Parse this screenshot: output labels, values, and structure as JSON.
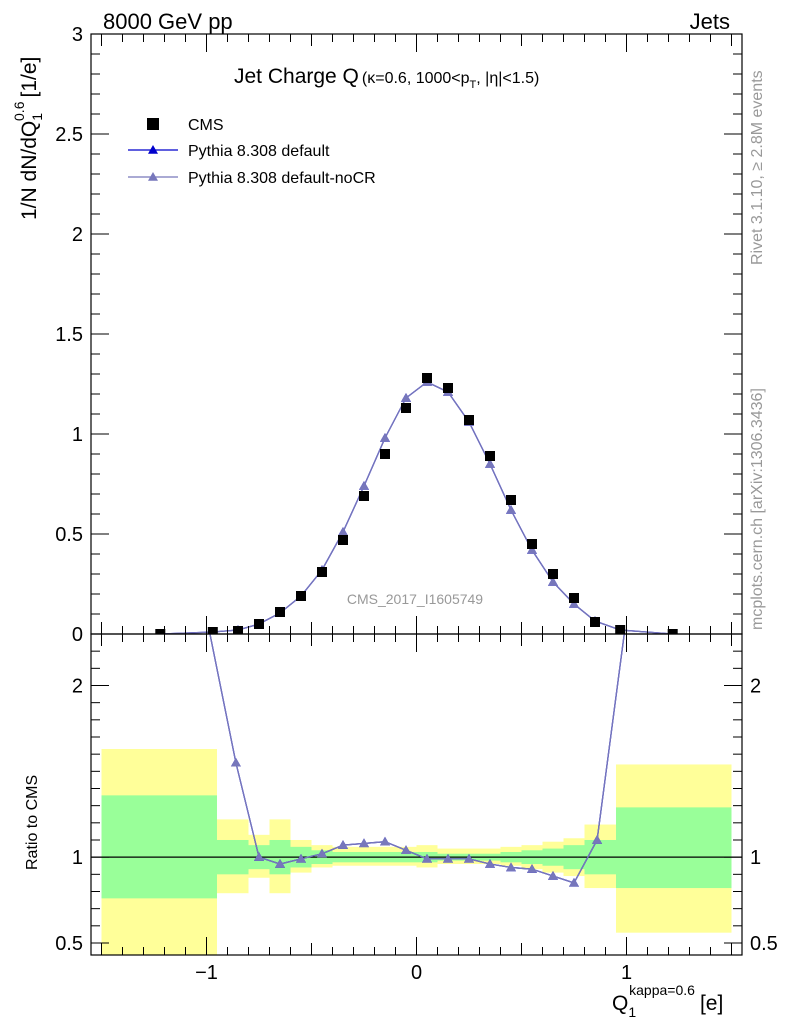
{
  "header": {
    "left": "8000 GeV pp",
    "right": "Jets"
  },
  "side": {
    "rivet": "Rivet 3.1.10, ≥ 2.8M events",
    "site": "mcplots.cern.ch [arXiv:1306.3436]"
  },
  "chart_data": [
    {
      "type": "scatter",
      "panel": "main",
      "title_main": "Jet Charge Q",
      "title_sub": "(κ=0.6, 1000<p",
      "title_sub_index": "T",
      "title_sub_end": ", |η|<1.5)",
      "ylabel": "1/N dN/dQ",
      "ylabel_sub": "1",
      "ylabel_sup": "0.6",
      "ylabel_unit": "[1/e]",
      "watermark": "CMS_2017_I1605749",
      "xlim": [
        -1.55,
        1.55
      ],
      "ylim": [
        0,
        3
      ],
      "y_ticks": [
        "0",
        "0.5",
        "1",
        "1.5",
        "2",
        "2.5",
        "3"
      ],
      "legend_placement": "top-left",
      "data": {
        "name": "CMS",
        "color": "#000000",
        "x": [
          -1.22,
          -0.97,
          -0.85,
          -0.75,
          -0.65,
          -0.55,
          -0.45,
          -0.35,
          -0.25,
          -0.15,
          -0.05,
          0.05,
          0.15,
          0.25,
          0.35,
          0.45,
          0.55,
          0.65,
          0.75,
          0.85,
          0.97,
          1.22
        ],
        "y": [
          0.0,
          0.01,
          0.015,
          0.05,
          0.11,
          0.19,
          0.31,
          0.47,
          0.69,
          0.9,
          1.13,
          1.28,
          1.23,
          1.07,
          0.89,
          0.67,
          0.45,
          0.3,
          0.18,
          0.06,
          0.02,
          0.0
        ]
      },
      "series": [
        {
          "name": "Pythia 8.308 default",
          "color": "#0000cc",
          "x": [
            -1.22,
            -0.97,
            -0.85,
            -0.75,
            -0.65,
            -0.55,
            -0.45,
            -0.35,
            -0.25,
            -0.15,
            -0.05,
            0.05,
            0.15,
            0.25,
            0.35,
            0.45,
            0.55,
            0.65,
            0.75,
            0.85,
            0.97,
            1.22
          ],
          "y": [
            0.0,
            0.01,
            0.02,
            0.05,
            0.105,
            0.19,
            0.32,
            0.51,
            0.74,
            0.98,
            1.18,
            1.26,
            1.21,
            1.06,
            0.85,
            0.62,
            0.42,
            0.26,
            0.15,
            0.065,
            0.02,
            0.0
          ]
        },
        {
          "name": "Pythia 8.308 default-noCR",
          "color": "#7777bb",
          "x": [
            -1.22,
            -0.97,
            -0.85,
            -0.75,
            -0.65,
            -0.55,
            -0.45,
            -0.35,
            -0.25,
            -0.15,
            -0.05,
            0.05,
            0.15,
            0.25,
            0.35,
            0.45,
            0.55,
            0.65,
            0.75,
            0.85,
            0.97,
            1.22
          ],
          "y": [
            0.0,
            0.01,
            0.02,
            0.05,
            0.105,
            0.19,
            0.32,
            0.51,
            0.74,
            0.98,
            1.18,
            1.26,
            1.21,
            1.06,
            0.85,
            0.62,
            0.42,
            0.26,
            0.15,
            0.065,
            0.02,
            0.0
          ]
        }
      ]
    },
    {
      "type": "line",
      "panel": "ratio",
      "ylabel": "Ratio to CMS",
      "xlabel": "Q",
      "xlabel_sub": "1",
      "xlabel_sup": "kappa=0.6",
      "xlabel_unit": "[e]",
      "xlim": [
        -1.55,
        1.55
      ],
      "ylim": [
        0.43,
        2.3
      ],
      "y_ticks": [
        "0.5",
        "1",
        "2"
      ],
      "x_ticks": [
        "−1",
        "0",
        "1"
      ],
      "band_colors": {
        "inner": "#99ff99",
        "outer": "#ffff99"
      },
      "bands": {
        "x_edges": [
          -1.5,
          -0.95,
          -0.8,
          -0.7,
          -0.6,
          -0.5,
          -0.4,
          -0.3,
          -0.2,
          -0.1,
          0.0,
          0.1,
          0.2,
          0.3,
          0.4,
          0.5,
          0.6,
          0.7,
          0.8,
          0.95,
          1.5
        ],
        "inner_lo": [
          0.76,
          0.9,
          0.93,
          0.9,
          0.94,
          0.96,
          0.97,
          0.97,
          0.97,
          0.97,
          0.97,
          0.98,
          0.98,
          0.98,
          0.97,
          0.96,
          0.95,
          0.93,
          0.9,
          0.82
        ],
        "inner_hi": [
          1.36,
          1.1,
          1.07,
          1.1,
          1.06,
          1.04,
          1.03,
          1.03,
          1.03,
          1.03,
          1.03,
          1.02,
          1.02,
          1.02,
          1.03,
          1.04,
          1.05,
          1.07,
          1.1,
          1.29
        ],
        "outer_lo": [
          0.4,
          0.79,
          0.88,
          0.79,
          0.91,
          0.94,
          0.95,
          0.95,
          0.95,
          0.95,
          0.94,
          0.96,
          0.96,
          0.96,
          0.95,
          0.93,
          0.91,
          0.89,
          0.82,
          0.56
        ],
        "outer_hi": [
          1.63,
          1.22,
          1.13,
          1.22,
          1.1,
          1.07,
          1.06,
          1.06,
          1.06,
          1.06,
          1.07,
          1.05,
          1.05,
          1.05,
          1.06,
          1.07,
          1.09,
          1.11,
          1.19,
          1.54
        ]
      },
      "series": [
        {
          "name": "Pythia 8.308 default",
          "color": "#0000cc",
          "x": [
            -1.0,
            -0.86,
            -0.75,
            -0.65,
            -0.55,
            -0.45,
            -0.35,
            -0.25,
            -0.15,
            -0.05,
            0.05,
            0.15,
            0.25,
            0.35,
            0.45,
            0.55,
            0.65,
            0.75,
            0.86,
            1.0
          ],
          "y": [
            2.4,
            1.55,
            1.0,
            0.96,
            0.99,
            1.02,
            1.07,
            1.08,
            1.09,
            1.04,
            0.99,
            0.99,
            0.99,
            0.96,
            0.94,
            0.93,
            0.89,
            0.85,
            1.1,
            2.4
          ]
        },
        {
          "name": "Pythia 8.308 default-noCR",
          "color": "#7777bb",
          "x": [
            -1.0,
            -0.86,
            -0.75,
            -0.65,
            -0.55,
            -0.45,
            -0.35,
            -0.25,
            -0.15,
            -0.05,
            0.05,
            0.15,
            0.25,
            0.35,
            0.45,
            0.55,
            0.65,
            0.75,
            0.86,
            1.0
          ],
          "y": [
            2.4,
            1.55,
            1.0,
            0.96,
            0.99,
            1.02,
            1.07,
            1.08,
            1.09,
            1.04,
            0.99,
            0.99,
            0.99,
            0.96,
            0.94,
            0.93,
            0.89,
            0.85,
            1.1,
            2.4
          ]
        }
      ]
    }
  ]
}
